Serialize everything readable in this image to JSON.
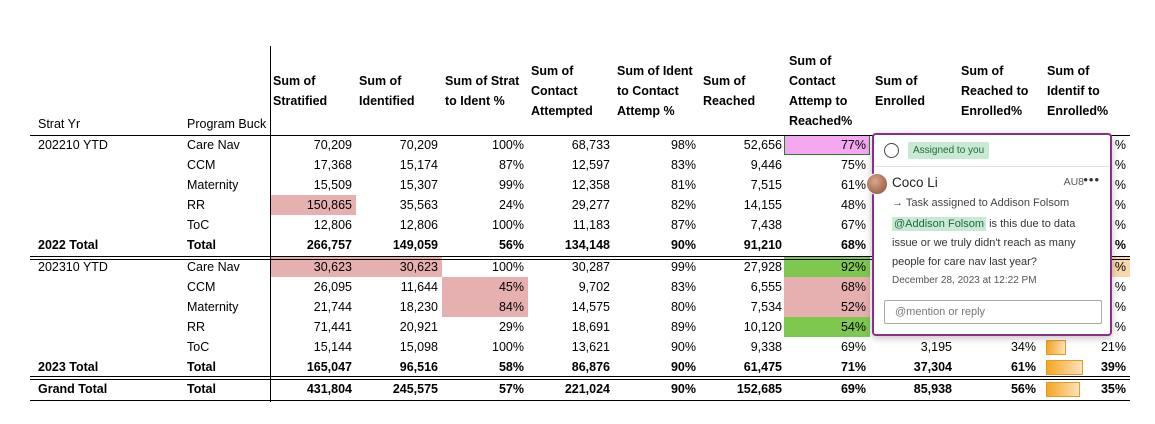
{
  "headers": {
    "strat_yr": "Strat Yr",
    "program": "Program Buck",
    "c1": "Sum of Stratified",
    "c2": "Sum of Identified",
    "c3": "Sum of Strat to Ident %",
    "c4": "Sum of Contact Attempted",
    "c5": "Sum of Ident to Contact Attemp %",
    "c6": "Sum of Reached",
    "c7": "Sum of Contact Attemp to Reached%",
    "c8": "Sum of Enrolled",
    "c9": "Sum of Reached to Enrolled%",
    "c10": "Sum of Identif to Enrolled%"
  },
  "rows": [
    {
      "yr": "202210 YTD",
      "prog": "Care Nav",
      "v": [
        "70,209",
        "70,209",
        "100%",
        "68,733",
        "98%",
        "52,656",
        "77%",
        "",
        "",
        "%"
      ],
      "total": false
    },
    {
      "yr": "",
      "prog": "CCM",
      "v": [
        "17,368",
        "15,174",
        "87%",
        "12,597",
        "83%",
        "9,446",
        "75%",
        "",
        "",
        "%"
      ],
      "total": false
    },
    {
      "yr": "",
      "prog": "Maternity",
      "v": [
        "15,509",
        "15,307",
        "99%",
        "12,358",
        "81%",
        "7,515",
        "61%",
        "",
        "",
        "%"
      ],
      "total": false
    },
    {
      "yr": "",
      "prog": "RR",
      "v": [
        "150,865",
        "35,563",
        "24%",
        "29,277",
        "82%",
        "14,155",
        "48%",
        "",
        "",
        "%"
      ],
      "total": false
    },
    {
      "yr": "",
      "prog": "ToC",
      "v": [
        "12,806",
        "12,806",
        "100%",
        "11,183",
        "87%",
        "7,438",
        "67%",
        "",
        "",
        "%"
      ],
      "total": false
    },
    {
      "yr": "2022 Total",
      "prog": "Total",
      "v": [
        "266,757",
        "149,059",
        "56%",
        "134,148",
        "90%",
        "91,210",
        "68%",
        "",
        "",
        "%"
      ],
      "total": true
    },
    {
      "yr": "202310 YTD",
      "prog": "Care Nav",
      "v": [
        "30,623",
        "30,623",
        "100%",
        "30,287",
        "99%",
        "27,928",
        "92%",
        "",
        "",
        "%"
      ],
      "total": false
    },
    {
      "yr": "",
      "prog": "CCM",
      "v": [
        "26,095",
        "11,644",
        "45%",
        "9,702",
        "83%",
        "6,555",
        "68%",
        "",
        "",
        "%"
      ],
      "total": false
    },
    {
      "yr": "",
      "prog": "Maternity",
      "v": [
        "21,744",
        "18,230",
        "84%",
        "14,575",
        "80%",
        "7,534",
        "52%",
        "",
        "",
        "%"
      ],
      "total": false
    },
    {
      "yr": "",
      "prog": "RR",
      "v": [
        "71,441",
        "20,921",
        "29%",
        "18,691",
        "89%",
        "10,120",
        "54%",
        "",
        "",
        "%"
      ],
      "total": false
    },
    {
      "yr": "",
      "prog": "ToC",
      "v": [
        "15,144",
        "15,098",
        "100%",
        "13,621",
        "90%",
        "9,338",
        "69%",
        "3,195",
        "34%",
        "21%"
      ],
      "total": false
    },
    {
      "yr": "2023 Total",
      "prog": "Total",
      "v": [
        "165,047",
        "96,516",
        "58%",
        "86,876",
        "90%",
        "61,475",
        "71%",
        "37,304",
        "61%",
        "39%"
      ],
      "total": true
    },
    {
      "yr": "Grand Total",
      "prog": "Total",
      "v": [
        "431,804",
        "245,575",
        "57%",
        "221,024",
        "90%",
        "152,685",
        "69%",
        "85,938",
        "56%",
        "35%"
      ],
      "total": true
    }
  ],
  "highlights": {
    "red": "#e6b0b0",
    "green": "#7ec850",
    "pink": "#f4a8f0",
    "databar": "#f5a623"
  },
  "databar_fractions": [
    0.34,
    0.61,
    0.56
  ],
  "comment": {
    "badge": "Assigned to you",
    "author": "Coco Li",
    "stamp": "AU8",
    "more": "•••",
    "task": "→ Task assigned to Addison Folsom",
    "mention": "@Addison Folsom",
    "message": " is this due to data issue or we truly didn't reach as many people for care nav last year?",
    "date": "December 28, 2023 at 12:22 PM",
    "reply_placeholder": "@mention or reply"
  }
}
